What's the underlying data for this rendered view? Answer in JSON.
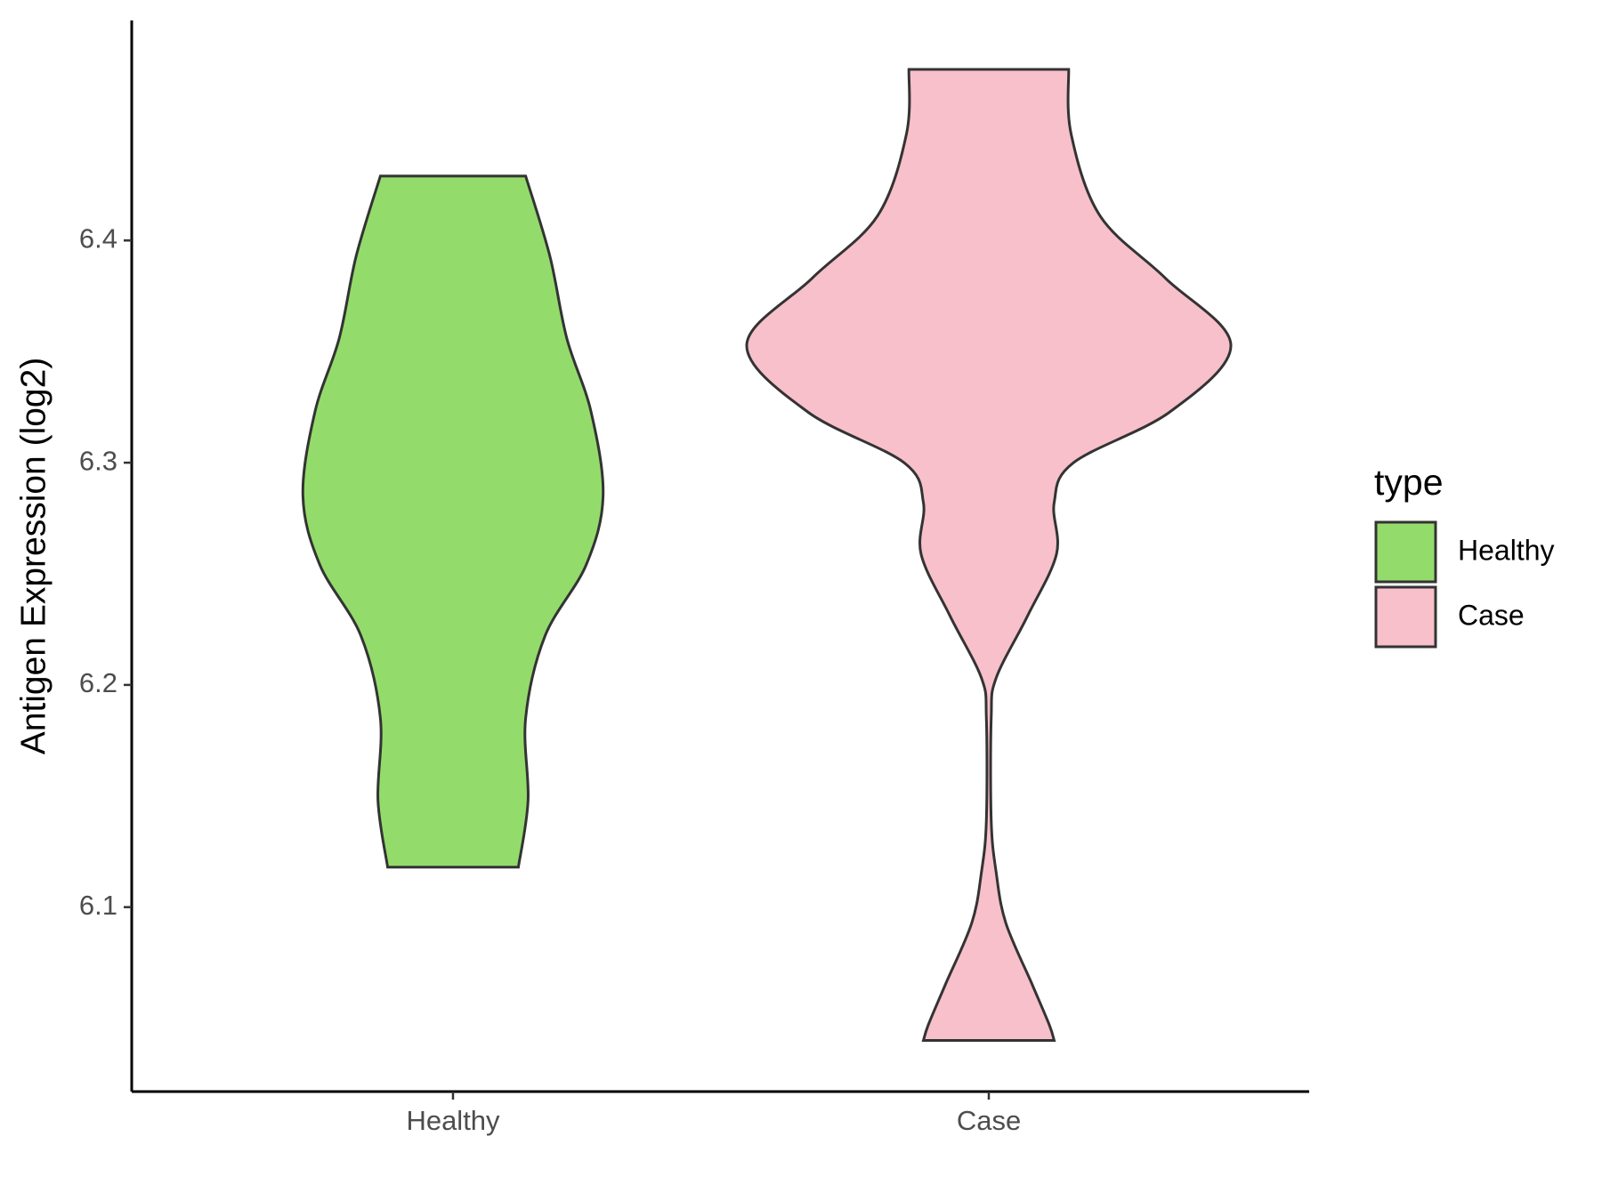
{
  "chart_data": {
    "type": "violin",
    "y_label": "Antigen Expression (log2)",
    "categories": [
      "Healthy",
      "Case"
    ],
    "ylim": [
      6.017,
      6.499
    ],
    "yticks": [
      6.1,
      6.2,
      6.3,
      6.4
    ],
    "legend_title": "type",
    "legend_position": "right",
    "series": [
      {
        "name": "Healthy",
        "color": "#93dc6b",
        "y": [
          6.429,
          6.393,
          6.356,
          6.323,
          6.285,
          6.254,
          6.222,
          6.185,
          6.148,
          6.118
        ],
        "density": [
          0.3,
          0.4,
          0.47,
          0.57,
          0.62,
          0.55,
          0.38,
          0.3,
          0.31,
          0.27
        ]
      },
      {
        "name": "Case",
        "color": "#f7c0cb",
        "y": [
          6.477,
          6.448,
          6.411,
          6.383,
          6.353,
          6.323,
          6.3,
          6.282,
          6.259,
          6.231,
          6.203,
          6.185,
          6.139,
          6.116,
          6.093,
          6.065,
          6.047,
          6.04
        ],
        "density": [
          0.33,
          0.34,
          0.46,
          0.73,
          1.0,
          0.75,
          0.35,
          0.27,
          0.28,
          0.16,
          0.03,
          0.01,
          0.01,
          0.03,
          0.07,
          0.18,
          0.25,
          0.27
        ]
      }
    ]
  }
}
